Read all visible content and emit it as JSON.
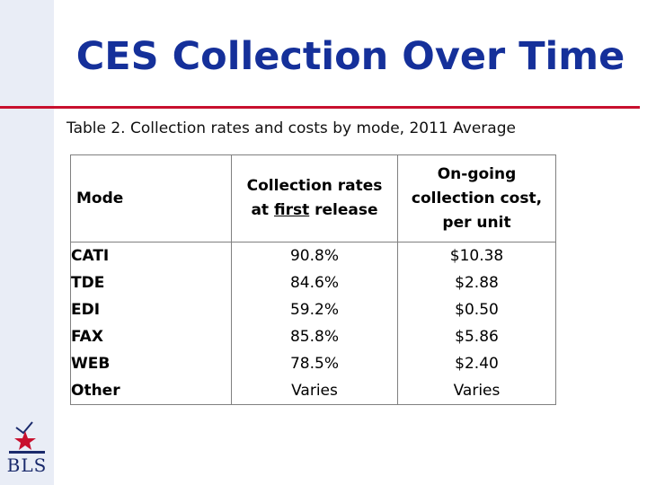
{
  "slide": {
    "title": "CES Collection Over Time",
    "caption": "Table 2.  Collection rates and costs by mode, 2011 Average",
    "colors": {
      "title": "#15309a",
      "rule": "#c8102e",
      "sidebar": "#e9edf6"
    }
  },
  "table": {
    "headers": {
      "mode": "Mode",
      "rate_pre": "Collection rates",
      "rate_line2_pre": "at ",
      "rate_underlined": "first",
      "rate_line2_post": " release",
      "cost_line1": "On-going",
      "cost_line2": "collection cost,",
      "cost_line3": "per unit"
    },
    "rows": [
      {
        "mode": "CATI",
        "rate": "90.8%",
        "cost": "$10.38"
      },
      {
        "mode": "TDE",
        "rate": "84.6%",
        "cost": "$2.88"
      },
      {
        "mode": "EDI",
        "rate": "59.2%",
        "cost": "$0.50"
      },
      {
        "mode": "FAX",
        "rate": "85.8%",
        "cost": "$5.86"
      },
      {
        "mode": "WEB",
        "rate": "78.5%",
        "cost": "$2.40"
      },
      {
        "mode": "Other",
        "rate": "Varies",
        "cost": "Varies"
      }
    ]
  },
  "logo": {
    "text": "BLS",
    "icon": "bls-star-logo-icon"
  }
}
